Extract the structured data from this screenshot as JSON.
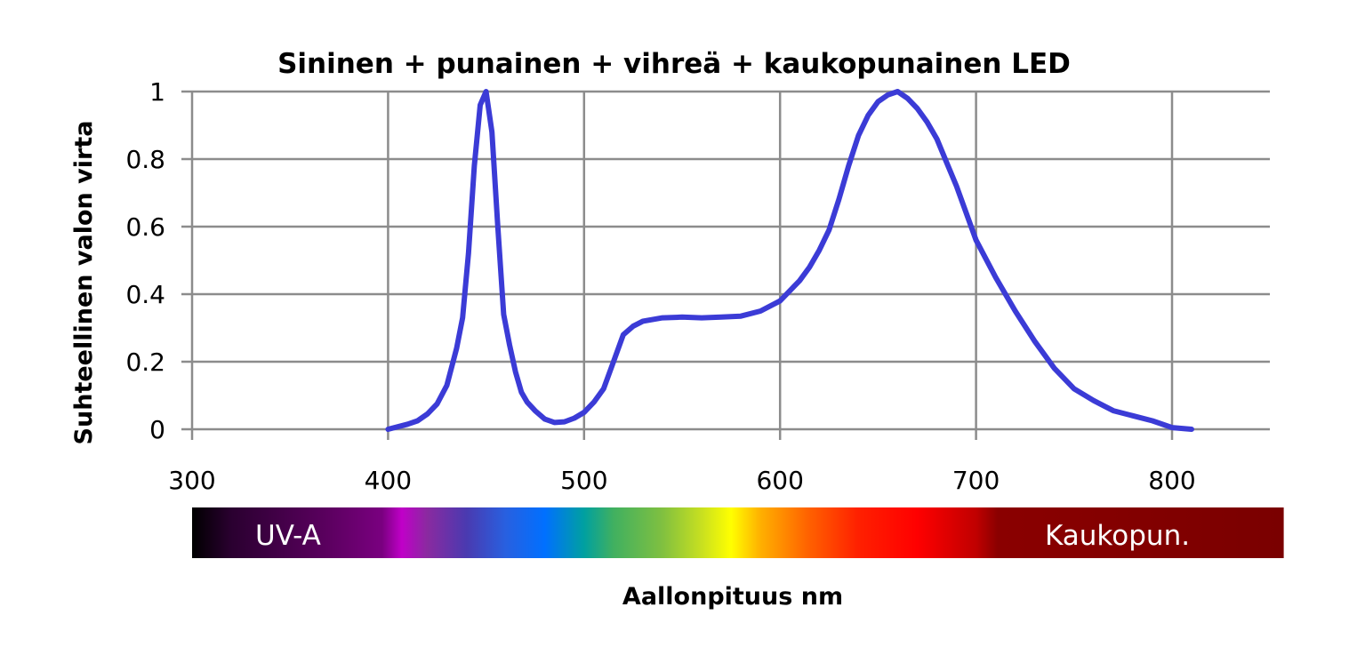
{
  "chart_data": {
    "type": "line",
    "title": "Sininen + punainen + vihreä + kaukopunainen LED",
    "xlabel": "Aallonpituus nm",
    "ylabel": "Suhteellinen valon virta",
    "xlim": [
      300,
      850
    ],
    "ylim": [
      0,
      1
    ],
    "x_ticks": [
      "300",
      "400",
      "500",
      "600",
      "700",
      "800"
    ],
    "x_tick_values": [
      300,
      400,
      500,
      600,
      700,
      800
    ],
    "y_ticks": [
      "0",
      "0.2",
      "0.4",
      "0.6",
      "0.8",
      "1"
    ],
    "y_tick_values": [
      0,
      0.2,
      0.4,
      0.6,
      0.8,
      1
    ],
    "grid": true,
    "series": [
      {
        "color": "#3b3bd6",
        "x": [
          400,
          410,
          415,
          420,
          425,
          430,
          435,
          438,
          441,
          444,
          447,
          450,
          453,
          456,
          459,
          462,
          465,
          468,
          471,
          475,
          480,
          485,
          490,
          495,
          500,
          505,
          510,
          515,
          520,
          525,
          530,
          540,
          550,
          560,
          570,
          580,
          590,
          600,
          605,
          610,
          615,
          620,
          625,
          630,
          635,
          640,
          645,
          650,
          655,
          660,
          665,
          670,
          675,
          680,
          685,
          690,
          700,
          710,
          720,
          730,
          740,
          750,
          760,
          765,
          770,
          780,
          790,
          800,
          810
        ],
        "y": [
          0.0,
          0.015,
          0.025,
          0.045,
          0.075,
          0.13,
          0.24,
          0.33,
          0.52,
          0.78,
          0.96,
          1.0,
          0.88,
          0.6,
          0.34,
          0.25,
          0.17,
          0.11,
          0.08,
          0.055,
          0.03,
          0.02,
          0.022,
          0.033,
          0.05,
          0.08,
          0.12,
          0.2,
          0.28,
          0.305,
          0.32,
          0.33,
          0.332,
          0.33,
          0.332,
          0.335,
          0.35,
          0.38,
          0.41,
          0.44,
          0.48,
          0.53,
          0.59,
          0.68,
          0.78,
          0.87,
          0.93,
          0.97,
          0.99,
          1.0,
          0.98,
          0.95,
          0.91,
          0.86,
          0.79,
          0.72,
          0.56,
          0.45,
          0.35,
          0.26,
          0.18,
          0.12,
          0.085,
          0.07,
          0.055,
          0.04,
          0.025,
          0.005,
          0.0
        ]
      }
    ],
    "spectrum_band": {
      "left_label": "UV-A",
      "right_label": "Kaukopun.",
      "x_range": [
        300,
        857
      ],
      "stops": [
        {
          "x": 300,
          "color": "#000000"
        },
        {
          "x": 320,
          "color": "#2a0030"
        },
        {
          "x": 370,
          "color": "#5c0060"
        },
        {
          "x": 397,
          "color": "#7a0080"
        },
        {
          "x": 407,
          "color": "#c000c8"
        },
        {
          "x": 420,
          "color": "#8a2aa0"
        },
        {
          "x": 440,
          "color": "#4a3ab0"
        },
        {
          "x": 460,
          "color": "#2860e0"
        },
        {
          "x": 480,
          "color": "#0070ff"
        },
        {
          "x": 500,
          "color": "#00a0a0"
        },
        {
          "x": 515,
          "color": "#40b060"
        },
        {
          "x": 540,
          "color": "#80c040"
        },
        {
          "x": 560,
          "color": "#c8e020"
        },
        {
          "x": 575,
          "color": "#ffff00"
        },
        {
          "x": 590,
          "color": "#ffb000"
        },
        {
          "x": 615,
          "color": "#ff6000"
        },
        {
          "x": 640,
          "color": "#ff2000"
        },
        {
          "x": 670,
          "color": "#ff0000"
        },
        {
          "x": 700,
          "color": "#c00000"
        },
        {
          "x": 711,
          "color": "#8a0000"
        },
        {
          "x": 857,
          "color": "#7a0000"
        }
      ]
    }
  }
}
